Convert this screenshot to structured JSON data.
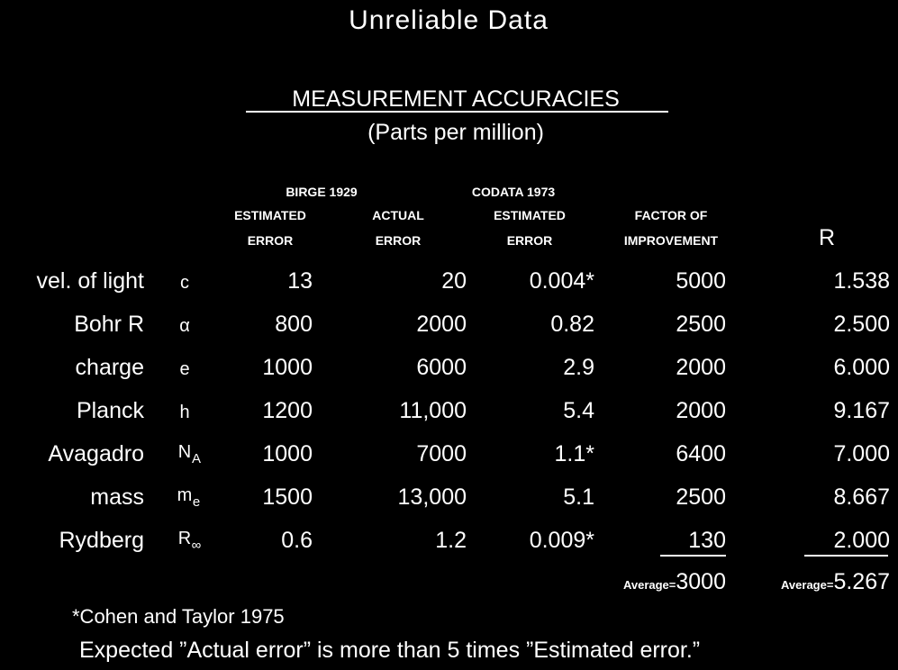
{
  "title": "Unreliable Data",
  "heading": "MEASUREMENT ACCURACIES",
  "subheading": "(Parts per million)",
  "groups": [
    "BIRGE 1929",
    "CODATA 1973"
  ],
  "columns": [
    {
      "line1": "ESTIMATED",
      "line2": "ERROR"
    },
    {
      "line1": "ACTUAL",
      "line2": "ERROR"
    },
    {
      "line1": "ESTIMATED",
      "line2": "ERROR"
    },
    {
      "line1": "FACTOR OF",
      "line2": "IMPROVEMENT"
    },
    {
      "line2": "R"
    }
  ],
  "rows": [
    {
      "label": "vel. of light",
      "symbol": "c",
      "cells": [
        "13",
        "20",
        "0.004*",
        "5000",
        "1.538"
      ]
    },
    {
      "label": "Bohr R",
      "symbol": "α",
      "cells": [
        "800",
        "2000",
        "0.82",
        "2500",
        "2.500"
      ]
    },
    {
      "label": "charge",
      "symbol": "e",
      "cells": [
        "1000",
        "6000",
        "2.9",
        "2000",
        "6.000"
      ]
    },
    {
      "label": "Planck",
      "symbol": "h",
      "cells": [
        "1200",
        "11,000",
        "5.4",
        "2000",
        "9.167"
      ]
    },
    {
      "label": "Avagadro",
      "symbol": "N",
      "sub": "A",
      "cells": [
        "1000",
        "7000",
        "1.1*",
        "6400",
        "7.000"
      ]
    },
    {
      "label": "mass",
      "symbol": "m",
      "sub": "e",
      "cells": [
        "1500",
        "13,000",
        "5.1",
        "2500",
        "8.667"
      ]
    },
    {
      "label": "Rydberg",
      "symbol": "R",
      "sub": "∞",
      "cells": [
        "0.6",
        "1.2",
        "0.009*",
        "130",
        "2.000"
      ]
    }
  ],
  "averages": [
    {
      "label": "Average=",
      "value": "3000"
    },
    {
      "label": "Average=",
      "value": "5.267"
    }
  ],
  "footnote": "*Cohen and Taylor 1975",
  "conclusion": "Expected ”Actual error” is more than 5 times ”Estimated error.”"
}
